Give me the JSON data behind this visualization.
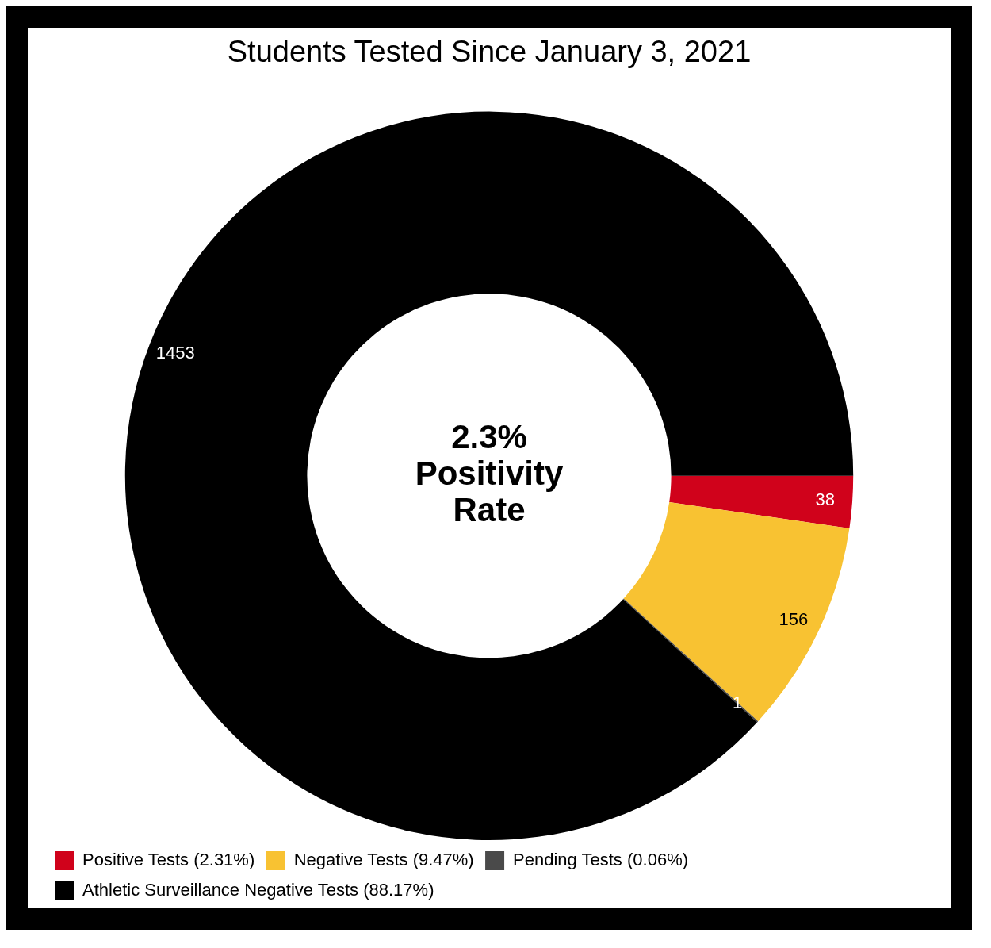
{
  "chart_data": {
    "type": "donut",
    "title": "Students Tested Since January 3, 2021",
    "categories": [
      "Positive Tests (2.31%)",
      "Negative Tests (9.47%)",
      "Pending Tests (0.06%)",
      "Athletic Surveillance Negative Tests (88.17%)"
    ],
    "values": [
      38,
      156,
      1,
      1453
    ],
    "colors": [
      "#d0021b",
      "#f8c232",
      "#4a4a4a",
      "#000000"
    ],
    "data_labels": true,
    "legend": "bottom",
    "annotations": [
      "2.3%\nPositivity\nRate"
    ]
  }
}
